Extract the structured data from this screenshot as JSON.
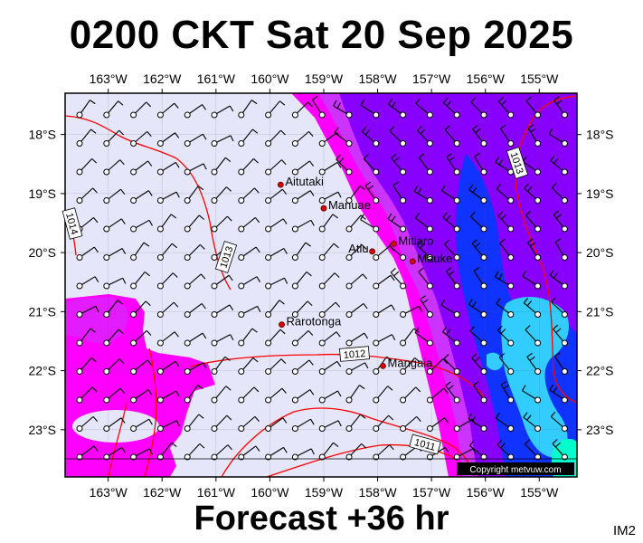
{
  "title": "0200 CKT Sat 20 Sep 2025",
  "footer": "Forecast +36 hr",
  "corner_label": "IM2",
  "copyright": "Copyright metvuw.com",
  "map": {
    "lon_range": [
      163.8,
      154.3
    ],
    "lat_range": [
      -17.3,
      -23.8
    ],
    "lon_ticks": [
      "163°W",
      "162°W",
      "161°W",
      "160°W",
      "159°W",
      "158°W",
      "157°W",
      "156°W",
      "155°W"
    ],
    "lon_values": [
      163,
      162,
      161,
      160,
      159,
      158,
      157,
      156,
      155
    ],
    "lat_ticks": [
      "18°S",
      "19°S",
      "20°S",
      "21°S",
      "22°S",
      "23°S"
    ],
    "lat_values": [
      -18,
      -19,
      -20,
      -21,
      -22,
      -23
    ],
    "places": [
      {
        "name": "Aitutaki",
        "lon": 159.8,
        "lat": -18.85
      },
      {
        "name": "Manuae",
        "lon": 159.0,
        "lat": -19.25
      },
      {
        "name": "Atiu",
        "lon": 158.1,
        "lat": -19.98
      },
      {
        "name": "Mitiaro",
        "lon": 157.7,
        "lat": -19.85
      },
      {
        "name": "Mauke",
        "lon": 157.35,
        "lat": -20.15
      },
      {
        "name": "Rarotonga",
        "lon": 159.78,
        "lat": -21.22
      },
      {
        "name": "Mangaia",
        "lon": 157.9,
        "lat": -21.92
      }
    ],
    "isobar_labels": [
      "1014",
      "1013",
      "1013",
      "1012",
      "1011"
    ],
    "colors": {
      "background": "#e6e6fa",
      "magenta": "#ff00ff",
      "violet": "#cc33ff",
      "purple": "#8800ff",
      "blue": "#1133ff",
      "cyan": "#33ccff",
      "isobar": "#ff0000"
    }
  }
}
